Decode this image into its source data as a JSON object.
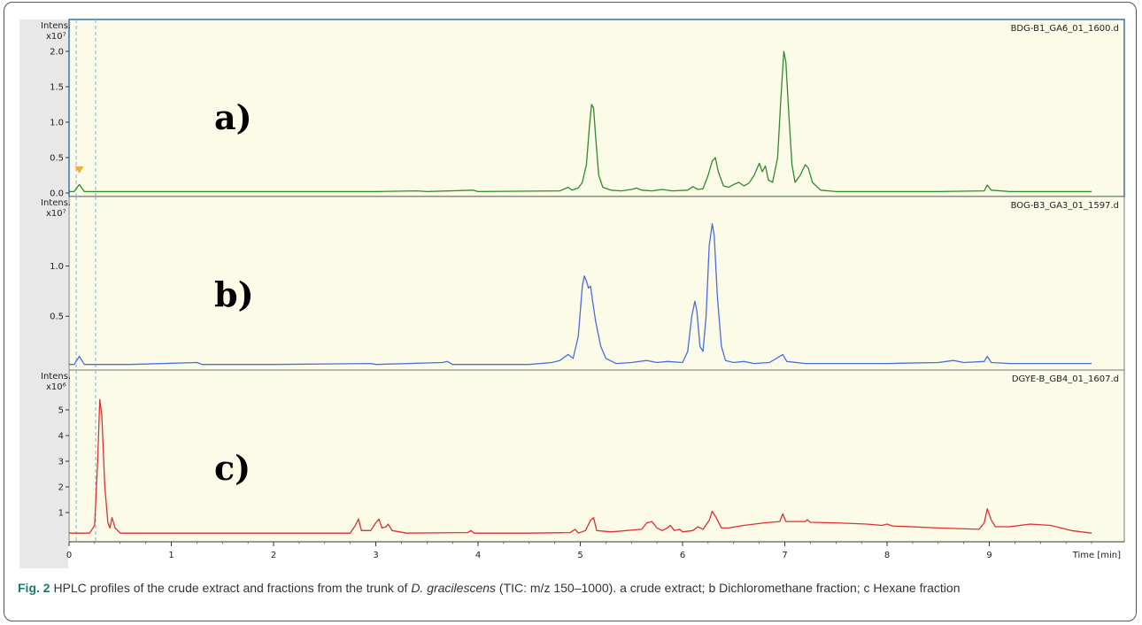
{
  "caption": {
    "fig_label": "Fig. 2",
    "text_before_italic": " HPLC profiles of the crude extract and fractions from the trunk of ",
    "italic": "D. gracilescens",
    "text_after_italic": " (TIC: m/z 150–1000). a crude extract; b Dichloromethane fraction; c Hexane fraction"
  },
  "colors": {
    "plot_bg": "#fbfbe8",
    "series_a": "#2e8b2e",
    "series_b": "#4a6de0",
    "series_c": "#e03030",
    "marker": "#f0b030"
  },
  "chart_data": [
    {
      "type": "line",
      "panel_label": "a)",
      "file_label": "BDG-B1_GA6_01_1600.d",
      "ylabel": "Intens.",
      "y_exponent": "x10⁷",
      "yticks": [
        "0.0",
        "0.5",
        "1.0",
        "1.5",
        "2.0"
      ],
      "ylim": [
        0,
        2.25
      ],
      "xlim": [
        0,
        10
      ],
      "series": [
        {
          "color": "series_a",
          "points": [
            [
              0,
              0.02
            ],
            [
              0.05,
              0.02
            ],
            [
              0.1,
              0.12
            ],
            [
              0.15,
              0.02
            ],
            [
              0.3,
              0.02
            ],
            [
              1.0,
              0.02
            ],
            [
              2.0,
              0.02
            ],
            [
              3.0,
              0.02
            ],
            [
              3.4,
              0.03
            ],
            [
              3.5,
              0.02
            ],
            [
              3.95,
              0.04
            ],
            [
              4.0,
              0.02
            ],
            [
              4.8,
              0.03
            ],
            [
              4.88,
              0.08
            ],
            [
              4.92,
              0.04
            ],
            [
              4.98,
              0.07
            ],
            [
              5.02,
              0.15
            ],
            [
              5.06,
              0.4
            ],
            [
              5.09,
              0.95
            ],
            [
              5.11,
              1.25
            ],
            [
              5.13,
              1.2
            ],
            [
              5.15,
              0.8
            ],
            [
              5.18,
              0.25
            ],
            [
              5.22,
              0.08
            ],
            [
              5.3,
              0.04
            ],
            [
              5.4,
              0.03
            ],
            [
              5.5,
              0.05
            ],
            [
              5.55,
              0.07
            ],
            [
              5.6,
              0.04
            ],
            [
              5.7,
              0.03
            ],
            [
              5.8,
              0.05
            ],
            [
              5.9,
              0.03
            ],
            [
              6.05,
              0.04
            ],
            [
              6.1,
              0.09
            ],
            [
              6.15,
              0.05
            ],
            [
              6.2,
              0.06
            ],
            [
              6.25,
              0.25
            ],
            [
              6.29,
              0.45
            ],
            [
              6.32,
              0.5
            ],
            [
              6.35,
              0.3
            ],
            [
              6.4,
              0.1
            ],
            [
              6.45,
              0.08
            ],
            [
              6.5,
              0.12
            ],
            [
              6.55,
              0.15
            ],
            [
              6.6,
              0.1
            ],
            [
              6.65,
              0.14
            ],
            [
              6.7,
              0.25
            ],
            [
              6.75,
              0.42
            ],
            [
              6.78,
              0.3
            ],
            [
              6.81,
              0.38
            ],
            [
              6.84,
              0.18
            ],
            [
              6.88,
              0.15
            ],
            [
              6.93,
              0.5
            ],
            [
              6.96,
              1.3
            ],
            [
              6.99,
              2.0
            ],
            [
              7.01,
              1.85
            ],
            [
              7.04,
              1.1
            ],
            [
              7.07,
              0.4
            ],
            [
              7.1,
              0.15
            ],
            [
              7.15,
              0.25
            ],
            [
              7.2,
              0.4
            ],
            [
              7.23,
              0.35
            ],
            [
              7.27,
              0.15
            ],
            [
              7.35,
              0.04
            ],
            [
              7.5,
              0.02
            ],
            [
              8.0,
              0.02
            ],
            [
              8.5,
              0.02
            ],
            [
              8.95,
              0.03
            ],
            [
              8.98,
              0.11
            ],
            [
              9.02,
              0.04
            ],
            [
              9.2,
              0.02
            ],
            [
              10.0,
              0.02
            ]
          ]
        }
      ],
      "marker_x": 0.1
    },
    {
      "type": "line",
      "panel_label": "b)",
      "file_label": "BOG-B3_GA3_01_1597.d",
      "ylabel": "Intens.",
      "y_exponent": "x10⁷",
      "yticks": [
        "0.5",
        "1.0"
      ],
      "ylim": [
        0,
        1.55
      ],
      "xlim": [
        0,
        10
      ],
      "series": [
        {
          "color": "series_b",
          "points": [
            [
              0,
              0.02
            ],
            [
              0.05,
              0.02
            ],
            [
              0.1,
              0.1
            ],
            [
              0.15,
              0.02
            ],
            [
              0.6,
              0.02
            ],
            [
              1.25,
              0.04
            ],
            [
              1.3,
              0.02
            ],
            [
              2.0,
              0.02
            ],
            [
              2.95,
              0.03
            ],
            [
              3.0,
              0.02
            ],
            [
              3.65,
              0.04
            ],
            [
              3.7,
              0.05
            ],
            [
              3.75,
              0.02
            ],
            [
              4.5,
              0.02
            ],
            [
              4.72,
              0.04
            ],
            [
              4.8,
              0.06
            ],
            [
              4.88,
              0.12
            ],
            [
              4.93,
              0.08
            ],
            [
              4.98,
              0.3
            ],
            [
              5.02,
              0.8
            ],
            [
              5.04,
              0.9
            ],
            [
              5.06,
              0.85
            ],
            [
              5.08,
              0.78
            ],
            [
              5.1,
              0.8
            ],
            [
              5.12,
              0.65
            ],
            [
              5.15,
              0.45
            ],
            [
              5.2,
              0.2
            ],
            [
              5.25,
              0.08
            ],
            [
              5.35,
              0.03
            ],
            [
              5.5,
              0.04
            ],
            [
              5.65,
              0.06
            ],
            [
              5.75,
              0.04
            ],
            [
              5.85,
              0.05
            ],
            [
              6.0,
              0.04
            ],
            [
              6.05,
              0.15
            ],
            [
              6.09,
              0.5
            ],
            [
              6.12,
              0.65
            ],
            [
              6.14,
              0.55
            ],
            [
              6.17,
              0.2
            ],
            [
              6.2,
              0.15
            ],
            [
              6.23,
              0.5
            ],
            [
              6.26,
              1.2
            ],
            [
              6.29,
              1.42
            ],
            [
              6.31,
              1.3
            ],
            [
              6.34,
              0.7
            ],
            [
              6.38,
              0.2
            ],
            [
              6.42,
              0.06
            ],
            [
              6.5,
              0.04
            ],
            [
              6.6,
              0.05
            ],
            [
              6.7,
              0.03
            ],
            [
              6.85,
              0.04
            ],
            [
              6.95,
              0.1
            ],
            [
              6.98,
              0.12
            ],
            [
              7.02,
              0.05
            ],
            [
              7.2,
              0.03
            ],
            [
              8.0,
              0.03
            ],
            [
              8.5,
              0.04
            ],
            [
              8.65,
              0.06
            ],
            [
              8.75,
              0.04
            ],
            [
              8.95,
              0.05
            ],
            [
              8.98,
              0.1
            ],
            [
              9.02,
              0.04
            ],
            [
              9.2,
              0.03
            ],
            [
              10.0,
              0.03
            ]
          ]
        }
      ]
    },
    {
      "type": "line",
      "panel_label": "c)",
      "file_label": "DGYE-B_GB4_01_1607.d",
      "ylabel": "Intens.",
      "y_exponent": "x10⁶",
      "yticks": [
        "1",
        "2",
        "3",
        "4",
        "5"
      ],
      "ylim": [
        0,
        6.0
      ],
      "xlim": [
        0,
        10
      ],
      "xlabel": "Time [min]",
      "xticks": [
        "0",
        "1",
        "2",
        "3",
        "4",
        "5",
        "6",
        "7",
        "8",
        "9"
      ],
      "series": [
        {
          "color": "series_c",
          "points": [
            [
              0,
              0.2
            ],
            [
              0.2,
              0.2
            ],
            [
              0.25,
              0.5
            ],
            [
              0.28,
              3.0
            ],
            [
              0.3,
              5.4
            ],
            [
              0.32,
              4.8
            ],
            [
              0.35,
              2.0
            ],
            [
              0.38,
              0.6
            ],
            [
              0.4,
              0.4
            ],
            [
              0.42,
              0.8
            ],
            [
              0.45,
              0.4
            ],
            [
              0.5,
              0.2
            ],
            [
              1.0,
              0.2
            ],
            [
              2.0,
              0.2
            ],
            [
              2.75,
              0.2
            ],
            [
              2.8,
              0.5
            ],
            [
              2.83,
              0.75
            ],
            [
              2.86,
              0.3
            ],
            [
              2.95,
              0.3
            ],
            [
              3.0,
              0.6
            ],
            [
              3.03,
              0.75
            ],
            [
              3.06,
              0.4
            ],
            [
              3.1,
              0.45
            ],
            [
              3.12,
              0.55
            ],
            [
              3.16,
              0.3
            ],
            [
              3.3,
              0.2
            ],
            [
              3.9,
              0.22
            ],
            [
              3.93,
              0.3
            ],
            [
              3.96,
              0.2
            ],
            [
              4.5,
              0.2
            ],
            [
              4.9,
              0.22
            ],
            [
              4.95,
              0.35
            ],
            [
              4.98,
              0.2
            ],
            [
              5.05,
              0.3
            ],
            [
              5.1,
              0.7
            ],
            [
              5.13,
              0.8
            ],
            [
              5.16,
              0.3
            ],
            [
              5.3,
              0.25
            ],
            [
              5.6,
              0.35
            ],
            [
              5.65,
              0.6
            ],
            [
              5.7,
              0.65
            ],
            [
              5.75,
              0.4
            ],
            [
              5.8,
              0.3
            ],
            [
              5.85,
              0.4
            ],
            [
              5.88,
              0.5
            ],
            [
              5.92,
              0.3
            ],
            [
              5.97,
              0.35
            ],
            [
              6.0,
              0.25
            ],
            [
              6.1,
              0.3
            ],
            [
              6.15,
              0.45
            ],
            [
              6.2,
              0.35
            ],
            [
              6.26,
              0.7
            ],
            [
              6.29,
              1.05
            ],
            [
              6.33,
              0.8
            ],
            [
              6.38,
              0.4
            ],
            [
              6.45,
              0.4
            ],
            [
              6.6,
              0.5
            ],
            [
              6.8,
              0.6
            ],
            [
              6.95,
              0.65
            ],
            [
              6.98,
              0.95
            ],
            [
              7.01,
              0.65
            ],
            [
              7.2,
              0.65
            ],
            [
              7.22,
              0.72
            ],
            [
              7.25,
              0.62
            ],
            [
              7.5,
              0.6
            ],
            [
              7.8,
              0.55
            ],
            [
              7.95,
              0.5
            ],
            [
              8.0,
              0.55
            ],
            [
              8.05,
              0.48
            ],
            [
              8.5,
              0.4
            ],
            [
              8.9,
              0.35
            ],
            [
              8.95,
              0.6
            ],
            [
              8.98,
              1.15
            ],
            [
              9.02,
              0.7
            ],
            [
              9.06,
              0.45
            ],
            [
              9.2,
              0.45
            ],
            [
              9.4,
              0.55
            ],
            [
              9.6,
              0.5
            ],
            [
              9.8,
              0.3
            ],
            [
              10.0,
              0.2
            ]
          ]
        }
      ]
    }
  ]
}
